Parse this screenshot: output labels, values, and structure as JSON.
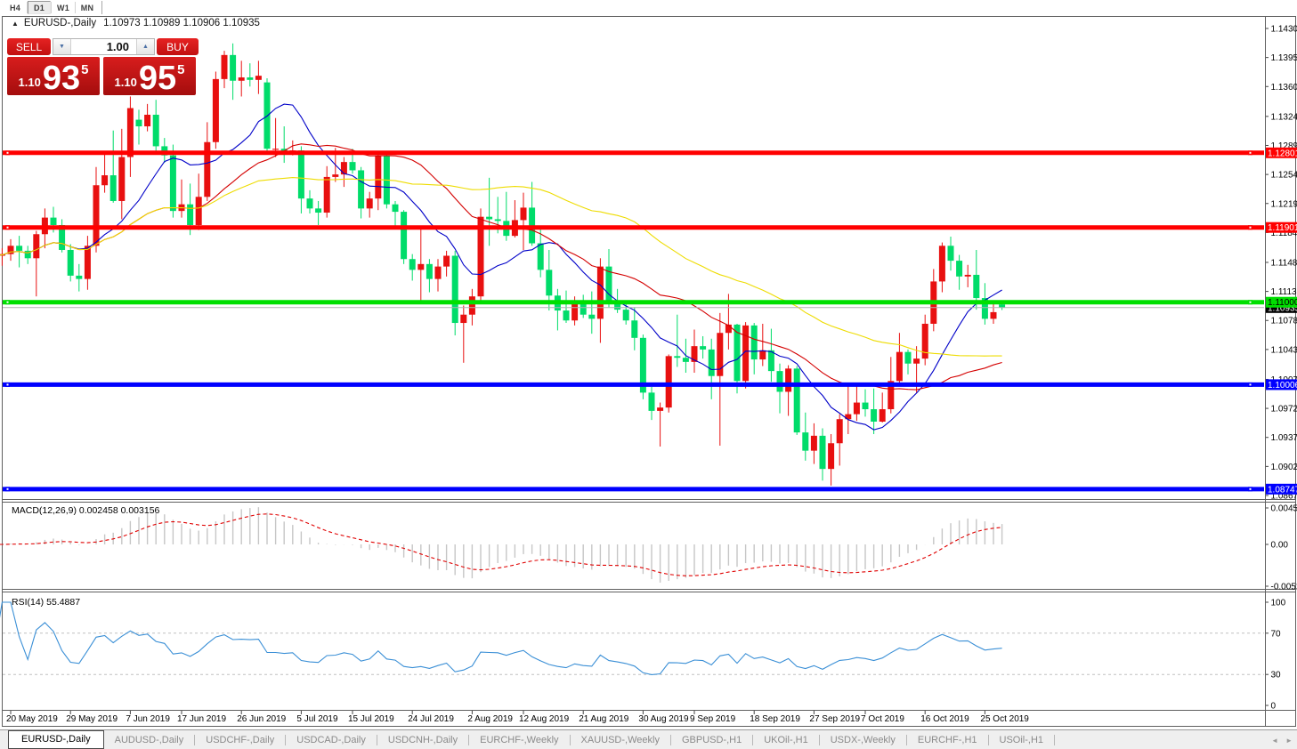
{
  "toolbar": {
    "timeframes": [
      {
        "label": "H4",
        "active": false
      },
      {
        "label": "D1",
        "active": true
      },
      {
        "label": "W1",
        "active": false
      },
      {
        "label": "MN",
        "active": false
      }
    ]
  },
  "chart_header": {
    "collapse_glyph": "▲",
    "symbol": "EURUSD-,Daily",
    "ohlc": "1.10973 1.10989 1.10906 1.10935"
  },
  "trade_widget": {
    "sell_label": "SELL",
    "buy_label": "BUY",
    "volume": "1.00",
    "step_down_glyph": "▼",
    "step_up_glyph": "▲",
    "sell_price": {
      "prefix": "1.10",
      "big": "93",
      "sup": "5"
    },
    "buy_price": {
      "prefix": "1.10",
      "big": "95",
      "sup": "5"
    }
  },
  "price_axis": {
    "ticks": [
      "1.14300",
      "1.13950",
      "1.13600",
      "1.13240",
      "1.12890",
      "1.12540",
      "1.12190",
      "1.11840",
      "1.11480",
      "1.11130",
      "1.10780",
      "1.10430",
      "1.10070",
      "1.09720",
      "1.09370",
      "1.09020",
      "1.08670"
    ]
  },
  "levels": [
    {
      "value": 1.12801,
      "label": "1.12801",
      "color": "#FF0000",
      "text": "#FFFFFF"
    },
    {
      "value": 1.11901,
      "label": "1.11901",
      "color": "#FF0000",
      "text": "#FFFFFF"
    },
    {
      "value": 1.11,
      "label": "1.11000",
      "color": "#00DF00",
      "text": "#000000"
    },
    {
      "value": 1.10006,
      "label": "1.10006",
      "color": "#0000FF",
      "text": "#FFFFFF"
    },
    {
      "value": 1.08747,
      "label": "1.08747",
      "color": "#0000FF",
      "text": "#FFFFFF"
    }
  ],
  "current_price": {
    "value": 1.10935,
    "label": "1.10935",
    "line_color": "#b2b2b2",
    "bg": "#000000",
    "text": "#FFFFFF"
  },
  "indicators": {
    "macd": {
      "title": "MACD(12,26,9)",
      "values": "0.002458 0.003156",
      "scale_labels": [
        "0.004538",
        "0.00",
        "-0.005200"
      ],
      "histogram_color": "#c6c6c6",
      "signal_color": "#e00000"
    },
    "rsi": {
      "title": "RSI(14)",
      "value": "55.4887",
      "scale_labels": [
        "100",
        "70",
        "30",
        "0"
      ],
      "level_lines": [
        70,
        30
      ],
      "line_color": "#3a8fd6"
    }
  },
  "date_axis": {
    "labels": [
      {
        "text": "20 May 2019",
        "bar": 2
      },
      {
        "text": "29 May 2019",
        "bar": 9
      },
      {
        "text": "7 Jun 2019",
        "bar": 16
      },
      {
        "text": "17 Jun 2019",
        "bar": 22
      },
      {
        "text": "26 Jun 2019",
        "bar": 29
      },
      {
        "text": "5 Jul 2019",
        "bar": 36
      },
      {
        "text": "15 Jul 2019",
        "bar": 42
      },
      {
        "text": "24 Jul 2019",
        "bar": 49
      },
      {
        "text": "2 Aug 2019",
        "bar": 56
      },
      {
        "text": "12 Aug 2019",
        "bar": 62
      },
      {
        "text": "21 Aug 2019",
        "bar": 69
      },
      {
        "text": "30 Aug 2019",
        "bar": 76
      },
      {
        "text": "9 Sep 2019",
        "bar": 82
      },
      {
        "text": "18 Sep 2019",
        "bar": 89
      },
      {
        "text": "27 Sep 2019",
        "bar": 96
      },
      {
        "text": "7 Oct 2019",
        "bar": 102
      },
      {
        "text": "16 Oct 2019",
        "bar": 109
      },
      {
        "text": "25 Oct 2019",
        "bar": 116
      }
    ]
  },
  "tabs": {
    "items": [
      {
        "label": "EURUSD-,Daily",
        "active": true
      },
      {
        "label": "AUDUSD-,Daily",
        "active": false
      },
      {
        "label": "USDCHF-,Daily",
        "active": false
      },
      {
        "label": "USDCAD-,Daily",
        "active": false
      },
      {
        "label": "USDCNH-,Daily",
        "active": false
      },
      {
        "label": "EURCHF-,Weekly",
        "active": false
      },
      {
        "label": "XAUUSD-,Weekly",
        "active": false
      },
      {
        "label": "GBPUSD-,H1",
        "active": false
      },
      {
        "label": "UKOil-,H1",
        "active": false
      },
      {
        "label": "USDX-,Weekly",
        "active": false
      },
      {
        "label": "EURCHF-,H1",
        "active": false
      },
      {
        "label": "USOil-,H1",
        "active": false
      }
    ],
    "scroll_left_glyph": "◄",
    "scroll_right_glyph": "►"
  },
  "chart_data": {
    "type": "candlestick",
    "symbol": "EURUSD-",
    "timeframe": "Daily",
    "up_color": "#e81010",
    "down_color": "#00dc6a",
    "price_range": [
      1.0867,
      1.143
    ],
    "ma_overlays": [
      {
        "period": 10,
        "color": "#0000c8"
      },
      {
        "period": 25,
        "color": "#d40000"
      },
      {
        "period": 50,
        "color": "#eedc00"
      }
    ],
    "candles": [
      [
        1.1161,
        1.1172,
        1.115,
        1.1156
      ],
      [
        1.1156,
        1.1165,
        1.1144,
        1.1158
      ],
      [
        1.1158,
        1.1176,
        1.115,
        1.1168
      ],
      [
        1.1168,
        1.118,
        1.1142,
        1.1162
      ],
      [
        1.1162,
        1.1168,
        1.1146,
        1.1153
      ],
      [
        1.1153,
        1.1186,
        1.1107,
        1.1182
      ],
      [
        1.1182,
        1.1213,
        1.1165,
        1.1202
      ],
      [
        1.1202,
        1.1215,
        1.1184,
        1.1193
      ],
      [
        1.1193,
        1.12,
        1.116,
        1.1163
      ],
      [
        1.1163,
        1.117,
        1.1125,
        1.1132
      ],
      [
        1.1132,
        1.1146,
        1.1113,
        1.1128
      ],
      [
        1.1128,
        1.118,
        1.1115,
        1.1168
      ],
      [
        1.1168,
        1.1263,
        1.116,
        1.1241
      ],
      [
        1.1241,
        1.128,
        1.1232,
        1.1253
      ],
      [
        1.1253,
        1.1307,
        1.122,
        1.1222
      ],
      [
        1.1222,
        1.1309,
        1.12,
        1.1275
      ],
      [
        1.1275,
        1.1348,
        1.1251,
        1.1334
      ],
      [
        1.132,
        1.1332,
        1.129,
        1.1312
      ],
      [
        1.1312,
        1.1339,
        1.1306,
        1.1326
      ],
      [
        1.1326,
        1.1344,
        1.128,
        1.1288
      ],
      [
        1.1288,
        1.1298,
        1.1268,
        1.1277
      ],
      [
        1.1277,
        1.129,
        1.1202,
        1.121
      ],
      [
        1.121,
        1.1248,
        1.1202,
        1.1218
      ],
      [
        1.1218,
        1.1243,
        1.1181,
        1.1193
      ],
      [
        1.1193,
        1.1255,
        1.1187,
        1.1227
      ],
      [
        1.1227,
        1.1317,
        1.1222,
        1.1293
      ],
      [
        1.1293,
        1.1378,
        1.1285,
        1.1369
      ],
      [
        1.1369,
        1.1403,
        1.1358,
        1.1398
      ],
      [
        1.1398,
        1.1412,
        1.1344,
        1.1367
      ],
      [
        1.1367,
        1.1391,
        1.1348,
        1.1371
      ],
      [
        1.1371,
        1.1388,
        1.136,
        1.1368
      ],
      [
        1.1368,
        1.1391,
        1.1351,
        1.1373
      ],
      [
        1.1365,
        1.137,
        1.1281,
        1.1285
      ],
      [
        1.1285,
        1.1322,
        1.1275,
        1.1285
      ],
      [
        1.1285,
        1.1312,
        1.1268,
        1.1278
      ],
      [
        1.1278,
        1.1295,
        1.1277,
        1.1283
      ],
      [
        1.1283,
        1.1288,
        1.1207,
        1.1225
      ],
      [
        1.1225,
        1.1235,
        1.1207,
        1.1213
      ],
      [
        1.1213,
        1.1222,
        1.1193,
        1.1208
      ],
      [
        1.1208,
        1.1264,
        1.1202,
        1.1251
      ],
      [
        1.1251,
        1.1286,
        1.1245,
        1.1254
      ],
      [
        1.1254,
        1.1275,
        1.1239,
        1.1269
      ],
      [
        1.1269,
        1.1285,
        1.1255,
        1.1259
      ],
      [
        1.1259,
        1.1263,
        1.1201,
        1.1213
      ],
      [
        1.1213,
        1.1233,
        1.1202,
        1.1225
      ],
      [
        1.1225,
        1.1282,
        1.1211,
        1.1277
      ],
      [
        1.1277,
        1.1282,
        1.1213,
        1.1218
      ],
      [
        1.1218,
        1.1222,
        1.1189,
        1.1209
      ],
      [
        1.1209,
        1.1211,
        1.1146,
        1.1152
      ],
      [
        1.1152,
        1.1158,
        1.1126,
        1.1139
      ],
      [
        1.1139,
        1.1188,
        1.1101,
        1.1146
      ],
      [
        1.1146,
        1.1152,
        1.1112,
        1.1128
      ],
      [
        1.1128,
        1.1152,
        1.1113,
        1.1143
      ],
      [
        1.1143,
        1.1162,
        1.1131,
        1.1156
      ],
      [
        1.1156,
        1.1162,
        1.106,
        1.1075
      ],
      [
        1.1075,
        1.1096,
        1.1027,
        1.1085
      ],
      [
        1.1085,
        1.1116,
        1.1072,
        1.1107
      ],
      [
        1.1107,
        1.1213,
        1.1101,
        1.1203
      ],
      [
        1.1203,
        1.125,
        1.1168,
        1.12
      ],
      [
        1.12,
        1.1227,
        1.1183,
        1.1198
      ],
      [
        1.1198,
        1.1233,
        1.1174,
        1.118
      ],
      [
        1.118,
        1.1223,
        1.1178,
        1.1199
      ],
      [
        1.1199,
        1.1232,
        1.1163,
        1.1214
      ],
      [
        1.1214,
        1.1245,
        1.1168,
        1.1171
      ],
      [
        1.1171,
        1.1192,
        1.113,
        1.1139
      ],
      [
        1.1139,
        1.1163,
        1.109,
        1.1108
      ],
      [
        1.1108,
        1.1116,
        1.1066,
        1.109
      ],
      [
        1.109,
        1.1114,
        1.1075,
        1.1078
      ],
      [
        1.1078,
        1.1107,
        1.1072,
        1.1099
      ],
      [
        1.1099,
        1.1109,
        1.1081,
        1.1085
      ],
      [
        1.1085,
        1.1113,
        1.1062,
        1.108
      ],
      [
        1.108,
        1.1153,
        1.1051,
        1.1143
      ],
      [
        1.1143,
        1.1164,
        1.1094,
        1.1102
      ],
      [
        1.1102,
        1.1116,
        1.1087,
        1.1091
      ],
      [
        1.1091,
        1.1098,
        1.1073,
        1.1078
      ],
      [
        1.1078,
        1.1094,
        1.1042,
        1.1057
      ],
      [
        1.1057,
        1.1061,
        1.0983,
        1.0991
      ],
      [
        1.0991,
        1.0998,
        1.0958,
        1.0969
      ],
      [
        1.0969,
        1.0979,
        1.0926,
        1.0973
      ],
      [
        1.0973,
        1.1037,
        1.0967,
        1.1035
      ],
      [
        1.1035,
        1.1085,
        1.1022,
        1.1033
      ],
      [
        1.1033,
        1.1056,
        1.1015,
        1.1028
      ],
      [
        1.1028,
        1.1067,
        1.1015,
        1.1047
      ],
      [
        1.1047,
        1.1059,
        1.1032,
        1.1043
      ],
      [
        1.1043,
        1.1056,
        1.0983,
        1.1011
      ],
      [
        1.1011,
        1.1087,
        1.0927,
        1.1063
      ],
      [
        1.1063,
        1.111,
        1.1043,
        1.1073
      ],
      [
        1.1073,
        1.1074,
        1.099,
        1.1005
      ],
      [
        1.1005,
        1.1076,
        1.0996,
        1.1072
      ],
      [
        1.1072,
        1.1075,
        1.1013,
        1.1031
      ],
      [
        1.1031,
        1.1074,
        1.1023,
        1.1042
      ],
      [
        1.1042,
        1.1068,
        1.1004,
        1.1017
      ],
      [
        1.1017,
        1.1026,
        1.0966,
        1.0992
      ],
      [
        1.0992,
        1.1024,
        1.0963,
        1.102
      ],
      [
        1.102,
        1.1023,
        1.094,
        1.0943
      ],
      [
        1.0943,
        1.0967,
        1.0909,
        1.0921
      ],
      [
        1.0921,
        1.0954,
        1.0905,
        1.0939
      ],
      [
        1.0939,
        1.0948,
        1.0885,
        1.0899
      ],
      [
        1.0899,
        1.0941,
        1.0879,
        1.093
      ],
      [
        1.093,
        1.0965,
        1.0903,
        1.0959
      ],
      [
        1.0959,
        1.0999,
        1.0941,
        1.0965
      ],
      [
        1.0965,
        1.0999,
        1.0957,
        1.0979
      ],
      [
        1.0979,
        1.0995,
        1.0962,
        1.0971
      ],
      [
        1.0971,
        1.0996,
        1.0941,
        1.0956
      ],
      [
        1.0956,
        1.0991,
        1.0955,
        1.0971
      ],
      [
        1.0971,
        1.1034,
        1.0966,
        1.1005
      ],
      [
        1.1005,
        1.1063,
        1.1002,
        1.104
      ],
      [
        1.104,
        1.1043,
        1.1013,
        1.1026
      ],
      [
        1.1026,
        1.1047,
        1.0991,
        1.1032
      ],
      [
        1.1032,
        1.1085,
        1.1024,
        1.1074
      ],
      [
        1.1074,
        1.114,
        1.1065,
        1.1125
      ],
      [
        1.1125,
        1.1172,
        1.1112,
        1.1168
      ],
      [
        1.1168,
        1.1179,
        1.1138,
        1.115
      ],
      [
        1.115,
        1.1157,
        1.1115,
        1.1131
      ],
      [
        1.1131,
        1.1145,
        1.1118,
        1.1133
      ],
      [
        1.1133,
        1.1163,
        1.1091,
        1.1105
      ],
      [
        1.1105,
        1.1123,
        1.1073,
        1.108
      ],
      [
        1.108,
        1.1102,
        1.1074,
        1.1088
      ],
      [
        1.10973,
        1.10989,
        1.10906,
        1.10935
      ]
    ]
  }
}
